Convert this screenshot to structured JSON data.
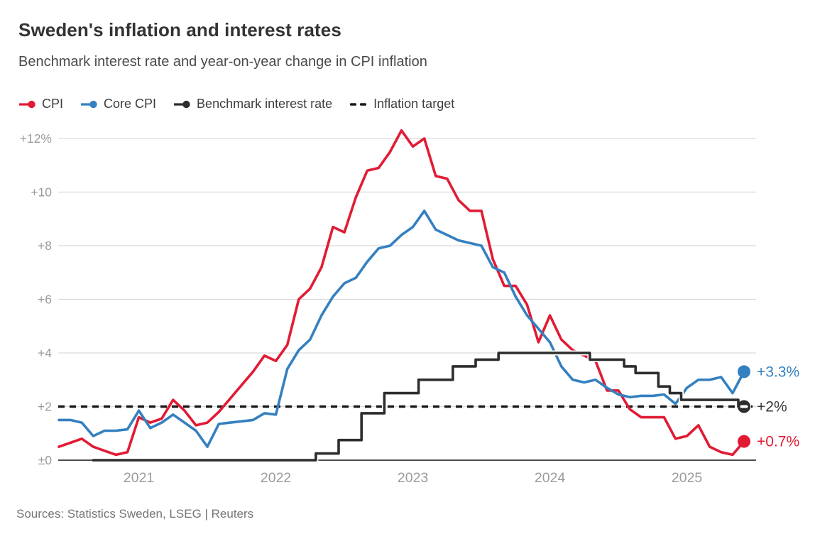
{
  "header": {
    "title": "Sweden's inflation and interest rates",
    "subtitle": "Benchmark interest rate and year-on-year change in CPI inflation"
  },
  "legend": [
    {
      "label": "CPI",
      "color": "#e11b34",
      "marker": "line-dot"
    },
    {
      "label": "Core CPI",
      "color": "#3480c0",
      "marker": "line-dot"
    },
    {
      "label": "Benchmark interest rate",
      "color": "#2d2d2d",
      "marker": "line-dot"
    },
    {
      "label": "Inflation target",
      "color": "#1a1a1a",
      "marker": "dashes"
    }
  ],
  "source": "Sources: Statistics Sweden, LSEG | Reuters",
  "colors": {
    "cpi": "#e11b34",
    "core_cpi": "#3480c0",
    "benchmark": "#2d2d2d",
    "target": "#1a1a1a",
    "gridline": "#d9d9d9",
    "zero_axis": "#4d4d4d",
    "tick_text": "#9b9b9b",
    "end_label_dark": "#3a3a3a"
  },
  "chart_data": {
    "type": "line",
    "title": "Sweden's inflation and interest rates",
    "subtitle": "Benchmark interest rate and year-on-year change in CPI inflation",
    "x_frequency": "monthly",
    "x_start": "2020-06",
    "x_end": "2025-06",
    "x_tick_labels": [
      "2021",
      "2022",
      "2023",
      "2024",
      "2025"
    ],
    "y_tick_labels": [
      "+12%",
      "+10",
      "+8",
      "+6",
      "+4",
      "+2",
      "±0"
    ],
    "y_tick_values": [
      12,
      10,
      8,
      6,
      4,
      2,
      0
    ],
    "ylim": [
      0,
      12.4
    ],
    "grid": "horizontal",
    "legend_position": "top",
    "inflation_target": 2,
    "series": [
      {
        "name": "CPI",
        "style": "line",
        "color": "#e11b34",
        "end_label": "+0.7%",
        "values": [
          0.5,
          0.65,
          0.8,
          0.5,
          0.35,
          0.2,
          0.3,
          1.6,
          1.4,
          1.55,
          2.25,
          1.85,
          1.3,
          1.4,
          1.8,
          2.3,
          2.8,
          3.3,
          3.9,
          3.7,
          4.3,
          6.0,
          6.4,
          7.2,
          8.7,
          8.5,
          9.8,
          10.8,
          10.9,
          11.5,
          12.3,
          11.7,
          12.0,
          10.6,
          10.5,
          9.7,
          9.3,
          9.3,
          7.5,
          6.5,
          6.5,
          5.8,
          4.4,
          5.4,
          4.5,
          4.1,
          3.9,
          3.7,
          2.6,
          2.6,
          1.9,
          1.6,
          1.6,
          1.6,
          0.8,
          0.9,
          1.3,
          0.5,
          0.3,
          0.2,
          0.7
        ]
      },
      {
        "name": "Core CPI",
        "style": "line",
        "color": "#3480c0",
        "end_label": "+3.3%",
        "values": [
          1.5,
          1.5,
          1.4,
          0.9,
          1.1,
          1.1,
          1.15,
          1.85,
          1.2,
          1.4,
          1.7,
          1.4,
          1.1,
          0.5,
          1.35,
          1.4,
          1.45,
          1.5,
          1.75,
          1.7,
          3.4,
          4.1,
          4.5,
          5.4,
          6.1,
          6.6,
          6.8,
          7.4,
          7.9,
          8.0,
          8.4,
          8.7,
          9.3,
          8.6,
          8.4,
          8.2,
          8.1,
          8.0,
          7.2,
          7.0,
          6.1,
          5.4,
          4.9,
          4.4,
          3.5,
          3.0,
          2.9,
          3.0,
          2.7,
          2.45,
          2.35,
          2.4,
          2.4,
          2.45,
          2.1,
          2.7,
          3.0,
          3.0,
          3.1,
          2.5,
          3.3
        ]
      },
      {
        "name": "Benchmark interest rate",
        "style": "step",
        "color": "#2d2d2d",
        "end_label": "+2%",
        "values": [
          null,
          null,
          null,
          0,
          0,
          0,
          0,
          0,
          0,
          0,
          0,
          0,
          0,
          0,
          0,
          0,
          0,
          0,
          0,
          0,
          0,
          0,
          0,
          0.25,
          0.25,
          0.75,
          0.75,
          1.75,
          1.75,
          2.5,
          2.5,
          2.5,
          3.0,
          3.0,
          3.0,
          3.5,
          3.5,
          3.75,
          3.75,
          4.0,
          4.0,
          4.0,
          4.0,
          4.0,
          4.0,
          4.0,
          4.0,
          3.75,
          3.75,
          3.75,
          3.5,
          3.25,
          3.25,
          2.75,
          2.5,
          2.25,
          2.25,
          2.25,
          2.25,
          2.25,
          2.0
        ]
      }
    ]
  }
}
